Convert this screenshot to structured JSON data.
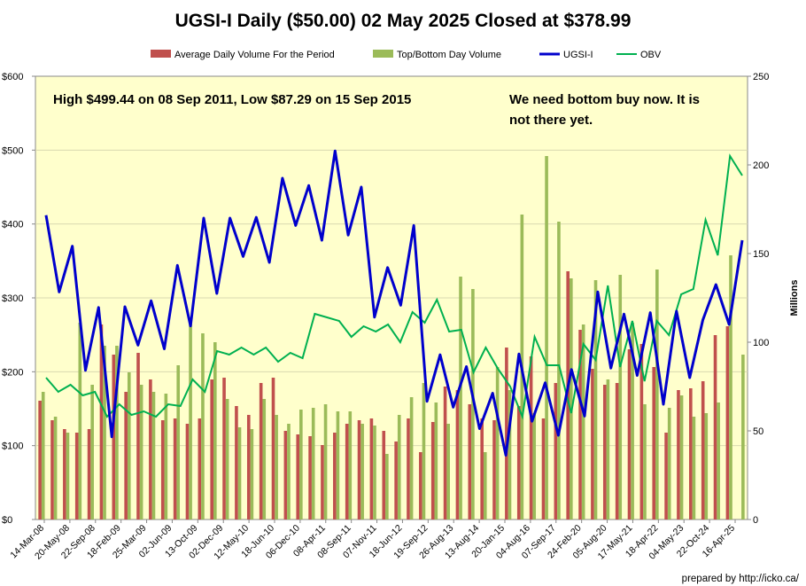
{
  "chart_data": {
    "type": "bar+line",
    "title": "UGSI-I Daily ($50.00) 02 May 2025 Closed at $378.99",
    "legend": [
      {
        "name": "Average Daily Volume For the Period",
        "color": "#c0504d",
        "kind": "bar"
      },
      {
        "name": "Top/Bottom Day Volume",
        "color": "#9bbb59",
        "kind": "bar"
      },
      {
        "name": "UGSI-I",
        "color": "#0000cc",
        "kind": "line"
      },
      {
        "name": "OBV",
        "color": "#00b050",
        "kind": "line"
      }
    ],
    "annotations": {
      "high_low": "High $499.44 on 08 Sep 2011, Low $87.29 on 15 Sep 2015",
      "note_line1": "We need bottom buy now. It is",
      "note_line2": "not there yet."
    },
    "credit": "prepared by http://icko.ca/",
    "y_left": {
      "ticks": [
        "$0",
        "$100",
        "$200",
        "$300",
        "$400",
        "$500",
        "$600"
      ],
      "range": [
        0,
        600
      ]
    },
    "y_right": {
      "label": "Millions",
      "ticks": [
        "0",
        "50",
        "100",
        "150",
        "200",
        "250"
      ],
      "range": [
        0,
        250
      ]
    },
    "x_tick_labels": [
      "14-Mar-08",
      "20-May-08",
      "22-Sep-08",
      "18-Feb-09",
      "25-Mar-09",
      "02-Jun-09",
      "13-Oct-09",
      "02-Dec-09",
      "12-May-10",
      "18-Jun-10",
      "06-Dec-10",
      "08-Apr-11",
      "08-Sep-11",
      "07-Nov-11",
      "18-Jun-12",
      "19-Sep-12",
      "26-Aug-13",
      "13-Aug-14",
      "20-Jan-15",
      "04-Aug-16",
      "07-Sep-17",
      "24-Feb-20",
      "05-Aug-20",
      "17-May-21",
      "18-Apr-22",
      "04-May-23",
      "22-Oct-24",
      "16-Apr-25"
    ],
    "ugsi": [
      412,
      308,
      370,
      202,
      287,
      112,
      288,
      236,
      296,
      231,
      344,
      262,
      408,
      306,
      408,
      356,
      409,
      348,
      462,
      398,
      452,
      378,
      499,
      385,
      450,
      274,
      341,
      290,
      398,
      160,
      223,
      152,
      207,
      123,
      171,
      87,
      224,
      133,
      185,
      114,
      203,
      140,
      308,
      205,
      278,
      195,
      280,
      156,
      282,
      192,
      270,
      318,
      264,
      378
    ],
    "obv": [
      80,
      72,
      76,
      70,
      72,
      58,
      65,
      59,
      61,
      58,
      65,
      64,
      79,
      72,
      95,
      93,
      97,
      93,
      97,
      89,
      94,
      91,
      116,
      114,
      112,
      103,
      109,
      106,
      110,
      100,
      117,
      111,
      124,
      106,
      107,
      83,
      97,
      85,
      75,
      58,
      103,
      87,
      87,
      60,
      99,
      90,
      132,
      86,
      112,
      78,
      112,
      104,
      127,
      130,
      169,
      149,
      205,
      194
    ],
    "avg_volume": [
      67,
      56,
      51,
      49,
      51,
      110,
      93,
      72,
      94,
      79,
      56,
      57,
      54,
      57,
      79,
      80,
      64,
      59,
      77,
      80,
      50,
      48,
      47,
      42,
      49,
      54,
      56,
      57,
      50,
      44,
      57,
      38,
      55,
      75,
      73,
      65,
      57,
      56,
      97,
      64,
      92,
      57,
      77,
      140,
      107,
      85,
      76,
      77,
      96,
      99,
      86,
      49,
      73,
      74,
      78,
      104,
      109
    ],
    "topbottom_volume": [
      72,
      58,
      49,
      111,
      76,
      98,
      98,
      83,
      76,
      72,
      71,
      87,
      113,
      105,
      100,
      68,
      52,
      51,
      68,
      59,
      54,
      62,
      63,
      65,
      61,
      61,
      54,
      53,
      37,
      59,
      69,
      77,
      66,
      54,
      137,
      130,
      38,
      86,
      73,
      172,
      60,
      205,
      168,
      136,
      110,
      135,
      79,
      138,
      111,
      65,
      141,
      63,
      70,
      58,
      60,
      66,
      149,
      93
    ]
  }
}
